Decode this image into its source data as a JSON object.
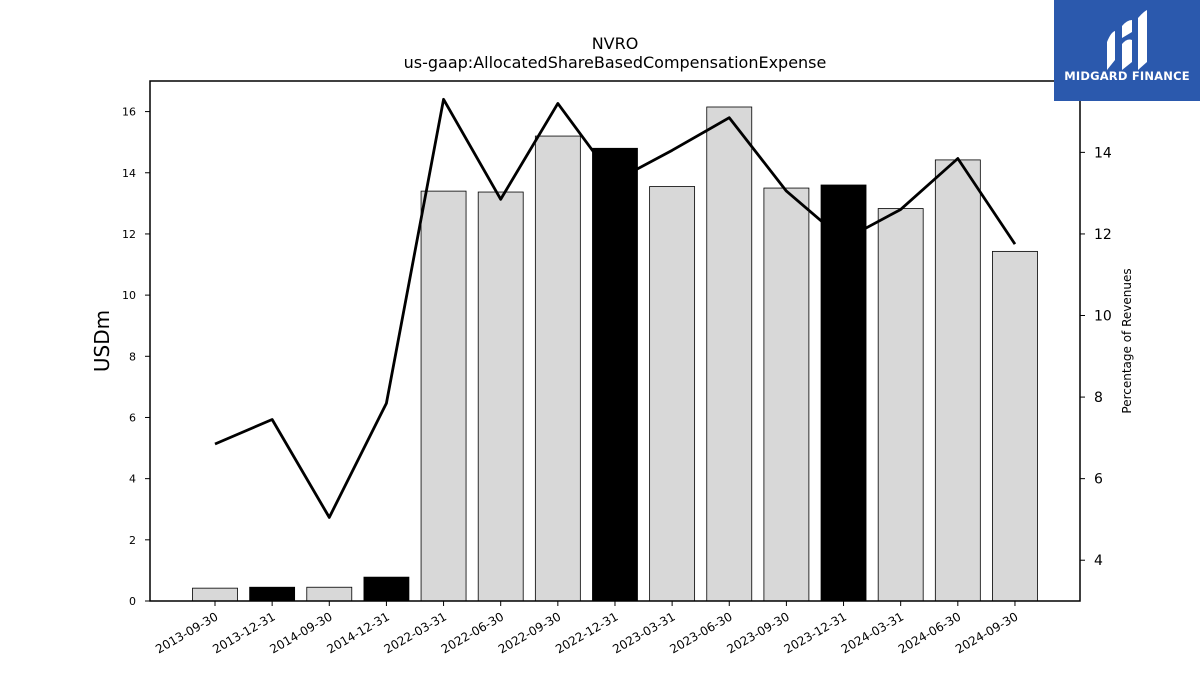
{
  "chart_data": {
    "type": "bar+line",
    "title": "NVRO",
    "subtitle": "us-gaap:AllocatedShareBasedCompensationExpense",
    "ylabel": "USDm",
    "y2label": "Percentage of Revenues",
    "ylim": [
      0,
      17
    ],
    "y2lim": [
      3,
      15.75
    ],
    "yticks": [
      0,
      2,
      4,
      6,
      8,
      10,
      12,
      14,
      16
    ],
    "y2ticks": [
      4,
      6,
      8,
      10,
      12,
      14
    ],
    "categories": [
      "2013-09-30",
      "2013-12-31",
      "2014-09-30",
      "2014-12-31",
      "2022-03-31",
      "2022-06-30",
      "2022-09-30",
      "2022-12-31",
      "2023-03-31",
      "2023-06-30",
      "2023-09-30",
      "2023-12-31",
      "2024-03-31",
      "2024-06-30",
      "2024-09-30"
    ],
    "bars": {
      "values": [
        0.42,
        0.45,
        0.45,
        0.78,
        13.4,
        13.37,
        15.2,
        14.8,
        13.55,
        16.15,
        13.5,
        13.6,
        12.83,
        14.42,
        11.43
      ],
      "highlight": [
        false,
        true,
        false,
        true,
        false,
        false,
        false,
        true,
        false,
        false,
        false,
        true,
        false,
        false,
        false
      ],
      "fill": "#d8d8d8",
      "highlight_fill": "#000000"
    },
    "line": {
      "values": [
        6.85,
        7.45,
        5.05,
        7.85,
        15.3,
        12.85,
        15.2,
        13.3,
        14.05,
        14.85,
        13.05,
        11.85,
        12.6,
        13.85,
        11.75
      ],
      "color": "#000000"
    },
    "grid": false
  },
  "logo": {
    "text": "MIDGARD FINANCE",
    "background": "#2b59ad"
  }
}
